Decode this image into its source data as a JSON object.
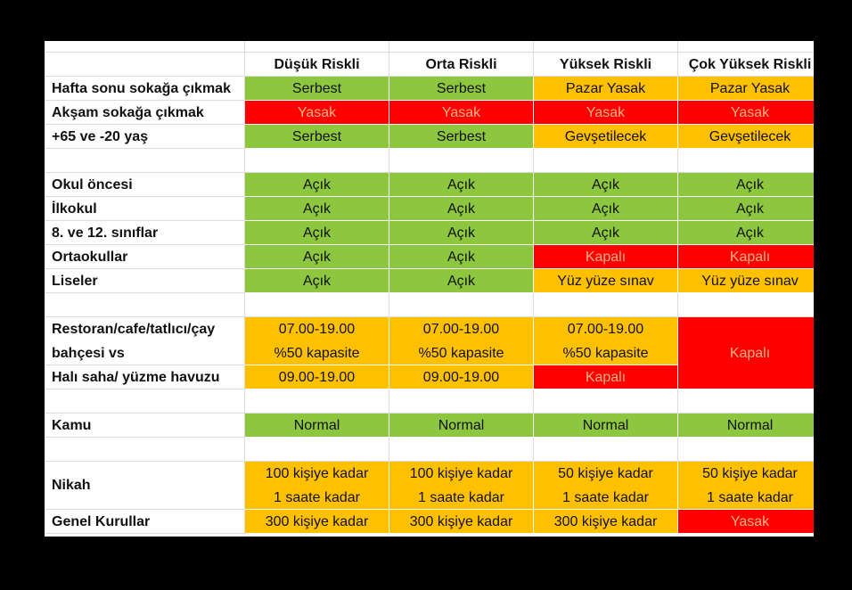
{
  "table": {
    "header": [
      "Düşük Riskli",
      "Orta Riskli",
      "Yüksek Riskli",
      "Çok Yüksek Riskli"
    ],
    "groups": [
      [
        {
          "label": [
            "Hafta sonu sokağa çıkmak"
          ],
          "cells": [
            {
              "lines": [
                "Serbest"
              ],
              "color": "#8dc63f"
            },
            {
              "lines": [
                "Serbest"
              ],
              "color": "#8dc63f"
            },
            {
              "lines": [
                "Pazar Yasak"
              ],
              "color": "#ffc000"
            },
            {
              "lines": [
                "Pazar Yasak"
              ],
              "color": "#ffc000"
            }
          ]
        },
        {
          "label": [
            "Akşam sokağa çıkmak"
          ],
          "cells": [
            {
              "lines": [
                "Yasak"
              ],
              "color": "#ff0000"
            },
            {
              "lines": [
                "Yasak"
              ],
              "color": "#ff0000"
            },
            {
              "lines": [
                "Yasak"
              ],
              "color": "#ff0000"
            },
            {
              "lines": [
                "Yasak"
              ],
              "color": "#ff0000"
            }
          ]
        },
        {
          "label": [
            "+65 ve -20 yaş"
          ],
          "cells": [
            {
              "lines": [
                "Serbest"
              ],
              "color": "#8dc63f"
            },
            {
              "lines": [
                "Serbest"
              ],
              "color": "#8dc63f"
            },
            {
              "lines": [
                "Gevşetilecek"
              ],
              "color": "#ffc000"
            },
            {
              "lines": [
                "Gevşetilecek"
              ],
              "color": "#ffc000"
            }
          ]
        }
      ],
      [
        {
          "label": [
            "Okul öncesi"
          ],
          "cells": [
            {
              "lines": [
                "Açık"
              ],
              "color": "#8dc63f"
            },
            {
              "lines": [
                "Açık"
              ],
              "color": "#8dc63f"
            },
            {
              "lines": [
                "Açık"
              ],
              "color": "#8dc63f"
            },
            {
              "lines": [
                "Açık"
              ],
              "color": "#8dc63f"
            }
          ]
        },
        {
          "label": [
            "İlkokul"
          ],
          "cells": [
            {
              "lines": [
                "Açık"
              ],
              "color": "#8dc63f"
            },
            {
              "lines": [
                "Açık"
              ],
              "color": "#8dc63f"
            },
            {
              "lines": [
                "Açık"
              ],
              "color": "#8dc63f"
            },
            {
              "lines": [
                "Açık"
              ],
              "color": "#8dc63f"
            }
          ]
        },
        {
          "label": [
            "8. ve 12. sınıflar"
          ],
          "cells": [
            {
              "lines": [
                "Açık"
              ],
              "color": "#8dc63f"
            },
            {
              "lines": [
                "Açık"
              ],
              "color": "#8dc63f"
            },
            {
              "lines": [
                "Açık"
              ],
              "color": "#8dc63f"
            },
            {
              "lines": [
                "Açık"
              ],
              "color": "#8dc63f"
            }
          ]
        },
        {
          "label": [
            "Ortaokullar"
          ],
          "cells": [
            {
              "lines": [
                "Açık"
              ],
              "color": "#8dc63f"
            },
            {
              "lines": [
                "Açık"
              ],
              "color": "#8dc63f"
            },
            {
              "lines": [
                "Kapalı"
              ],
              "color": "#ff0000"
            },
            {
              "lines": [
                "Kapalı"
              ],
              "color": "#ff0000"
            }
          ]
        },
        {
          "label": [
            "Liseler"
          ],
          "cells": [
            {
              "lines": [
                "Açık"
              ],
              "color": "#8dc63f"
            },
            {
              "lines": [
                "Açık"
              ],
              "color": "#8dc63f"
            },
            {
              "lines": [
                "Yüz yüze sınav"
              ],
              "color": "#ffc000"
            },
            {
              "lines": [
                "Yüz yüze sınav"
              ],
              "color": "#ffc000"
            }
          ]
        }
      ],
      [
        {
          "label": [
            "Restoran/cafe/tatlıcı/çay",
            "bahçesi vs"
          ],
          "cells": [
            {
              "lines": [
                "07.00-19.00",
                "%50 kapasite"
              ],
              "color": "#ffc000"
            },
            {
              "lines": [
                "07.00-19.00",
                "%50 kapasite"
              ],
              "color": "#ffc000"
            },
            {
              "lines": [
                "07.00-19.00",
                "%50 kapasite"
              ],
              "color": "#ffc000"
            },
            {
              "lines": [
                "Kapalı"
              ],
              "color": "#ff0000",
              "rowspan": 2
            }
          ]
        },
        {
          "label": [
            "Halı saha/ yüzme havuzu"
          ],
          "cells": [
            {
              "lines": [
                "09.00-19.00"
              ],
              "color": "#ffc000"
            },
            {
              "lines": [
                "09.00-19.00"
              ],
              "color": "#ffc000"
            },
            {
              "lines": [
                "Kapalı"
              ],
              "color": "#ff0000"
            },
            {
              "lines": [
                "Kapalı"
              ],
              "color": "#ff0000"
            }
          ]
        }
      ],
      [
        {
          "label": [
            "Kamu"
          ],
          "cells": [
            {
              "lines": [
                "Normal"
              ],
              "color": "#8dc63f"
            },
            {
              "lines": [
                "Normal"
              ],
              "color": "#8dc63f"
            },
            {
              "lines": [
                "Normal"
              ],
              "color": "#8dc63f"
            },
            {
              "lines": [
                "Normal"
              ],
              "color": "#8dc63f"
            }
          ]
        }
      ],
      [
        {
          "label": [
            "Nikah"
          ],
          "cells": [
            {
              "lines": [
                "100 kişiye kadar",
                "1 saate kadar"
              ],
              "color": "#ffc000"
            },
            {
              "lines": [
                "100 kişiye kadar",
                "1 saate kadar"
              ],
              "color": "#ffc000"
            },
            {
              "lines": [
                "50 kişiye kadar",
                "1 saate kadar"
              ],
              "color": "#ffc000"
            },
            {
              "lines": [
                "50 kişiye kadar",
                "1 saate kadar"
              ],
              "color": "#ffc000"
            }
          ]
        },
        {
          "label": [
            "Genel Kurullar"
          ],
          "cells": [
            {
              "lines": [
                "300 kişiye kadar"
              ],
              "color": "#ffc000"
            },
            {
              "lines": [
                "300 kişiye kadar"
              ],
              "color": "#ffc000"
            },
            {
              "lines": [
                "300 kişiye kadar"
              ],
              "color": "#ffc000"
            },
            {
              "lines": [
                "Yasak"
              ],
              "color": "#ff0000"
            }
          ]
        }
      ]
    ]
  }
}
